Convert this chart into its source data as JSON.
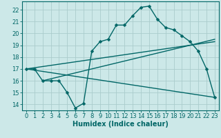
{
  "title": "",
  "xlabel": "Humidex (Indice chaleur)",
  "ylabel": "",
  "bg_color": "#cce8e8",
  "grid_color": "#aacccc",
  "line_color": "#006666",
  "xlim": [
    -0.5,
    23.5
  ],
  "ylim": [
    13.5,
    22.7
  ],
  "xticks": [
    0,
    1,
    2,
    3,
    4,
    5,
    6,
    7,
    8,
    9,
    10,
    11,
    12,
    13,
    14,
    15,
    16,
    17,
    18,
    19,
    20,
    21,
    22,
    23
  ],
  "yticks": [
    14,
    15,
    16,
    17,
    18,
    19,
    20,
    21,
    22
  ],
  "line1_x": [
    0,
    1,
    2,
    3,
    4,
    5,
    6,
    7,
    8,
    9,
    10,
    11,
    12,
    13,
    14,
    15,
    16,
    17,
    18,
    19,
    20,
    21,
    22,
    23
  ],
  "line1_y": [
    17.0,
    17.0,
    16.0,
    16.0,
    16.0,
    15.0,
    13.7,
    14.1,
    18.5,
    19.3,
    19.5,
    20.7,
    20.7,
    21.5,
    22.2,
    22.3,
    21.2,
    20.5,
    20.3,
    19.8,
    19.3,
    18.5,
    17.0,
    14.6
  ],
  "line2_x": [
    0,
    23
  ],
  "line2_y": [
    17.0,
    19.3
  ],
  "line3_x": [
    0,
    23
  ],
  "line3_y": [
    17.0,
    14.6
  ],
  "line4_x": [
    2,
    23
  ],
  "line4_y": [
    16.0,
    19.5
  ],
  "tick_fontsize": 6,
  "xlabel_fontsize": 7,
  "marker_size": 2.5,
  "linewidth": 1.0
}
